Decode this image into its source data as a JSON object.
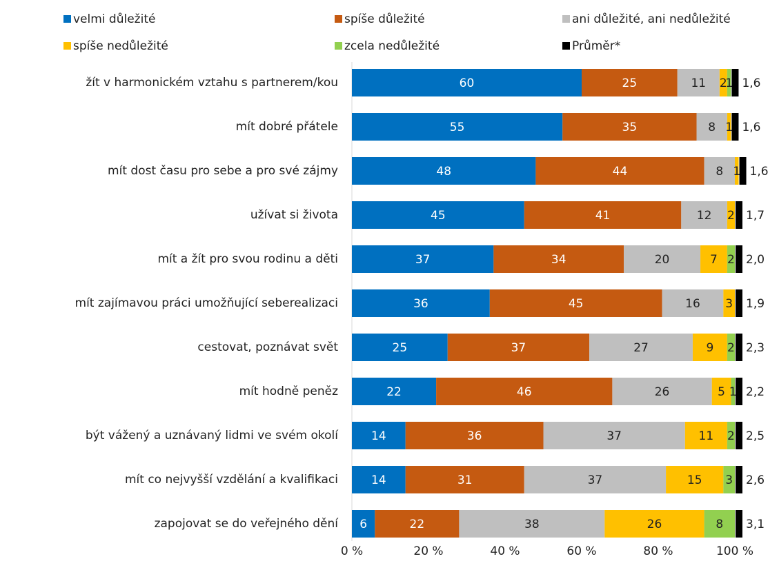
{
  "chart_data": {
    "type": "stacked_bar_horizontal",
    "categories": [
      "žít v harmonickém vztahu s partnerem/kou",
      "mít dobré přátele",
      "mít dost času pro sebe a pro své zájmy",
      "užívat si života",
      "mít a žít pro svou rodinu a děti",
      "mít zajímavou práci umožňující seberealizaci",
      "cestovat, poznávat svět",
      "mít hodně peněz",
      "být vážený a uznávaný lidmi ve svém okolí",
      "mít co nejvyšší vzdělání a kvalifikaci",
      "zapojovat se do veřejného dění"
    ],
    "series": [
      {
        "name": "velmi důležité",
        "color": "#0070c0",
        "values": [
          60,
          55,
          48,
          45,
          37,
          36,
          25,
          22,
          14,
          14,
          6
        ]
      },
      {
        "name": "spíše důležité",
        "color": "#c55a11",
        "values": [
          25,
          35,
          44,
          41,
          34,
          45,
          37,
          46,
          36,
          31,
          22
        ]
      },
      {
        "name": "ani důležité, ani nedůležité",
        "color": "#bfbfbf",
        "values": [
          11,
          8,
          8,
          12,
          20,
          16,
          27,
          26,
          37,
          37,
          38
        ]
      },
      {
        "name": "spíše nedůležité",
        "color": "#ffc000",
        "values": [
          2,
          1,
          1,
          2,
          7,
          3,
          9,
          5,
          11,
          15,
          26
        ]
      },
      {
        "name": "zcela nedůležité",
        "color": "#92d050",
        "values": [
          1,
          null,
          null,
          null,
          2,
          null,
          2,
          1,
          2,
          3,
          8
        ]
      },
      {
        "name": "Průměr*",
        "color": "#000000",
        "values": [
          1.6,
          1.6,
          1.6,
          1.7,
          2.0,
          1.9,
          2.3,
          2.2,
          2.5,
          2.6,
          3.1
        ],
        "value_labels": [
          "1,6",
          "1,6",
          "1,6",
          "1,7",
          "2,0",
          "1,9",
          "2,3",
          "2,2",
          "2,5",
          "2,6",
          "3,1"
        ]
      }
    ],
    "xlim": [
      0,
      100
    ],
    "xticks": [
      {
        "value": 0,
        "label": "0 %"
      },
      {
        "value": 20,
        "label": "20 %"
      },
      {
        "value": 40,
        "label": "40 %"
      },
      {
        "value": 60,
        "label": "60 %"
      },
      {
        "value": 80,
        "label": "80 %"
      },
      {
        "value": 100,
        "label": "100 %"
      }
    ]
  }
}
